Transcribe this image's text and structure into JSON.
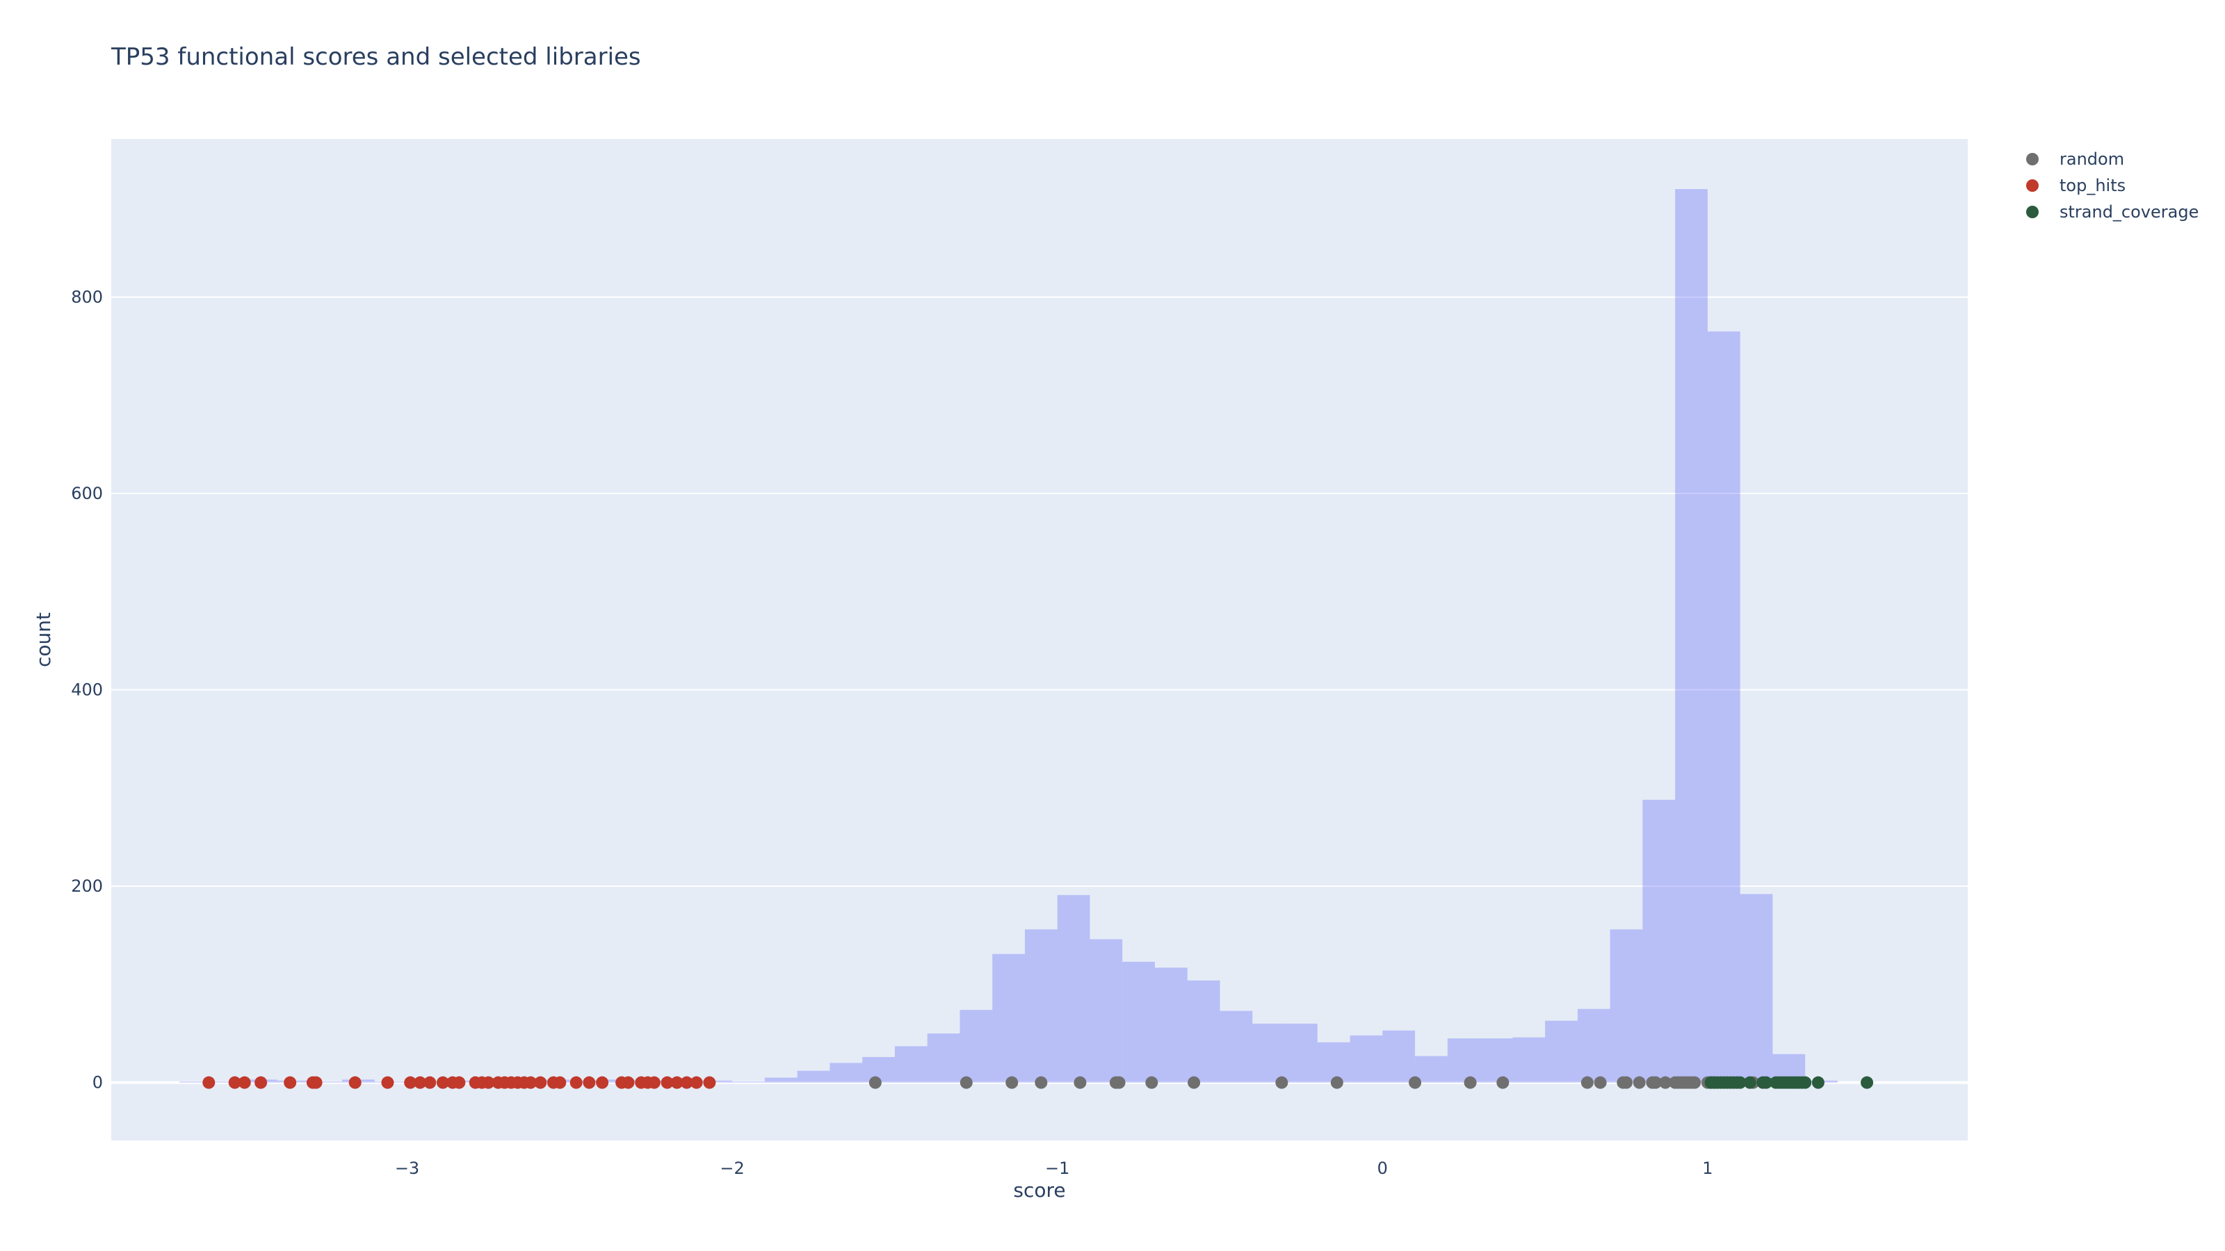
{
  "title": "TP53 functional scores and selected libraries",
  "colors": {
    "plot_bg": "#e5ecf6",
    "grid": "#ffffff",
    "histogram": "#636efa",
    "histogram_opacity": 0.35,
    "random": "#6f6f6f",
    "top_hits": "#c0392b",
    "strand_coverage": "#2a5b3d",
    "text": "#2a3f5f"
  },
  "legend": {
    "items": [
      {
        "label": "random",
        "color": "#6f6f6f"
      },
      {
        "label": "top_hits",
        "color": "#c0392b"
      },
      {
        "label": "strand_coverage",
        "color": "#2a5b3d"
      }
    ]
  },
  "chart_data": {
    "type": "histogram+scatter",
    "title": "TP53 functional scores and selected libraries",
    "xlabel": "score",
    "ylabel": "count",
    "xlim": [
      -3.91,
      1.8
    ],
    "ylim": [
      -59,
      961
    ],
    "x_ticks": [
      -3,
      -2,
      -1,
      0,
      1
    ],
    "x_tick_labels": [
      "−3",
      "−2",
      "−1",
      "0",
      "1"
    ],
    "y_ticks": [
      0,
      200,
      400,
      600,
      800
    ],
    "y_tick_labels": [
      "0",
      "200",
      "400",
      "600",
      "800"
    ],
    "grid": true,
    "legend_position": "top-right outside",
    "histogram": {
      "bin_width": 0.1,
      "bins": [
        {
          "x0": -3.7,
          "x1": -3.6,
          "count": 1
        },
        {
          "x0": -3.6,
          "x1": -3.5,
          "count": 1
        },
        {
          "x0": -3.5,
          "x1": -3.4,
          "count": 3
        },
        {
          "x0": -3.4,
          "x1": -3.3,
          "count": 2
        },
        {
          "x0": -3.3,
          "x1": -3.2,
          "count": 1
        },
        {
          "x0": -3.2,
          "x1": -3.1,
          "count": 3
        },
        {
          "x0": -3.1,
          "x1": -3.0,
          "count": 1
        },
        {
          "x0": -3.0,
          "x1": -2.9,
          "count": 1
        },
        {
          "x0": -2.9,
          "x1": -2.8,
          "count": 2
        },
        {
          "x0": -2.8,
          "x1": -2.7,
          "count": 3
        },
        {
          "x0": -2.7,
          "x1": -2.6,
          "count": 2
        },
        {
          "x0": -2.6,
          "x1": -2.5,
          "count": 3
        },
        {
          "x0": -2.5,
          "x1": -2.4,
          "count": 2
        },
        {
          "x0": -2.4,
          "x1": -2.3,
          "count": 3
        },
        {
          "x0": -2.3,
          "x1": -2.2,
          "count": 2
        },
        {
          "x0": -2.2,
          "x1": -2.1,
          "count": 3
        },
        {
          "x0": -2.1,
          "x1": -2.0,
          "count": 2
        },
        {
          "x0": -2.0,
          "x1": -1.9,
          "count": 1
        },
        {
          "x0": -1.9,
          "x1": -1.8,
          "count": 5
        },
        {
          "x0": -1.8,
          "x1": -1.7,
          "count": 12
        },
        {
          "x0": -1.7,
          "x1": -1.6,
          "count": 20
        },
        {
          "x0": -1.6,
          "x1": -1.5,
          "count": 26
        },
        {
          "x0": -1.5,
          "x1": -1.4,
          "count": 37
        },
        {
          "x0": -1.4,
          "x1": -1.3,
          "count": 50
        },
        {
          "x0": -1.3,
          "x1": -1.2,
          "count": 74
        },
        {
          "x0": -1.2,
          "x1": -1.1,
          "count": 131
        },
        {
          "x0": -1.1,
          "x1": -1.0,
          "count": 156
        },
        {
          "x0": -1.0,
          "x1": -0.9,
          "count": 191
        },
        {
          "x0": -0.9,
          "x1": -0.8,
          "count": 146
        },
        {
          "x0": -0.8,
          "x1": -0.7,
          "count": 123
        },
        {
          "x0": -0.7,
          "x1": -0.6,
          "count": 117
        },
        {
          "x0": -0.6,
          "x1": -0.5,
          "count": 104
        },
        {
          "x0": -0.5,
          "x1": -0.4,
          "count": 73
        },
        {
          "x0": -0.4,
          "x1": -0.3,
          "count": 60
        },
        {
          "x0": -0.3,
          "x1": -0.2,
          "count": 60
        },
        {
          "x0": -0.2,
          "x1": -0.1,
          "count": 41
        },
        {
          "x0": -0.1,
          "x1": 0.0,
          "count": 48
        },
        {
          "x0": 0.0,
          "x1": 0.1,
          "count": 53
        },
        {
          "x0": 0.1,
          "x1": 0.2,
          "count": 27
        },
        {
          "x0": 0.2,
          "x1": 0.3,
          "count": 45
        },
        {
          "x0": 0.3,
          "x1": 0.4,
          "count": 45
        },
        {
          "x0": 0.4,
          "x1": 0.5,
          "count": 46
        },
        {
          "x0": 0.5,
          "x1": 0.6,
          "count": 63
        },
        {
          "x0": 0.6,
          "x1": 0.7,
          "count": 75
        },
        {
          "x0": 0.7,
          "x1": 0.8,
          "count": 156
        },
        {
          "x0": 0.8,
          "x1": 0.9,
          "count": 288
        },
        {
          "x0": 0.9,
          "x1": 1.0,
          "count": 910
        },
        {
          "x0": 1.0,
          "x1": 1.1,
          "count": 765
        },
        {
          "x0": 1.1,
          "x1": 1.2,
          "count": 192
        },
        {
          "x0": 1.2,
          "x1": 1.3,
          "count": 29
        },
        {
          "x0": 1.3,
          "x1": 1.4,
          "count": 2
        }
      ]
    },
    "series": [
      {
        "name": "random",
        "type": "scatter",
        "y": 0,
        "x": [
          -1.56,
          -1.28,
          -1.14,
          -1.05,
          -0.93,
          -0.82,
          -0.81,
          -0.71,
          -0.58,
          -0.31,
          -0.14,
          0.1,
          0.27,
          0.37,
          0.63,
          0.67,
          0.74,
          0.75,
          0.79,
          0.83,
          0.84,
          0.87,
          0.9,
          0.91,
          0.92,
          0.93,
          0.94,
          0.95,
          0.96,
          1.0,
          1.01,
          1.02,
          1.14
        ]
      },
      {
        "name": "top_hits",
        "type": "scatter",
        "y": 0,
        "x": [
          -3.61,
          -3.53,
          -3.5,
          -3.45,
          -3.36,
          -3.29,
          -3.28,
          -3.16,
          -3.06,
          -2.99,
          -2.96,
          -2.93,
          -2.89,
          -2.86,
          -2.84,
          -2.79,
          -2.77,
          -2.75,
          -2.72,
          -2.7,
          -2.68,
          -2.66,
          -2.64,
          -2.62,
          -2.59,
          -2.55,
          -2.53,
          -2.48,
          -2.44,
          -2.4,
          -2.34,
          -2.32,
          -2.28,
          -2.26,
          -2.24,
          -2.2,
          -2.17,
          -2.14,
          -2.11,
          -2.07
        ]
      },
      {
        "name": "strand_coverage",
        "type": "scatter",
        "y": 0,
        "x": [
          1.01,
          1.02,
          1.03,
          1.04,
          1.05,
          1.06,
          1.07,
          1.08,
          1.09,
          1.1,
          1.13,
          1.17,
          1.18,
          1.21,
          1.22,
          1.23,
          1.24,
          1.25,
          1.26,
          1.27,
          1.28,
          1.29,
          1.3,
          1.34,
          1.49
        ]
      }
    ]
  }
}
